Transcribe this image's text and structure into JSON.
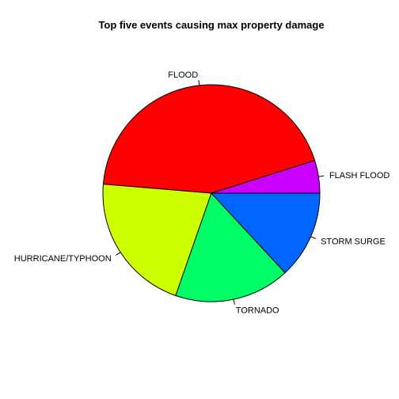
{
  "chart_data": {
    "type": "pie",
    "title": "Top five events causing max property damage",
    "categories": [
      "FLASH FLOOD",
      "FLOOD",
      "HURRICANE/TYPHOON",
      "TORNADO",
      "STORM SURGE"
    ],
    "values": [
      16.1,
      144.7,
      69.3,
      56.9,
      43.3
    ],
    "colors": [
      "#CC00FF",
      "#FF0000",
      "#CCFF00",
      "#00FF66",
      "#0066FF"
    ],
    "start_angle_deg": 0,
    "direction": "counterclockwise",
    "legend": "none"
  }
}
